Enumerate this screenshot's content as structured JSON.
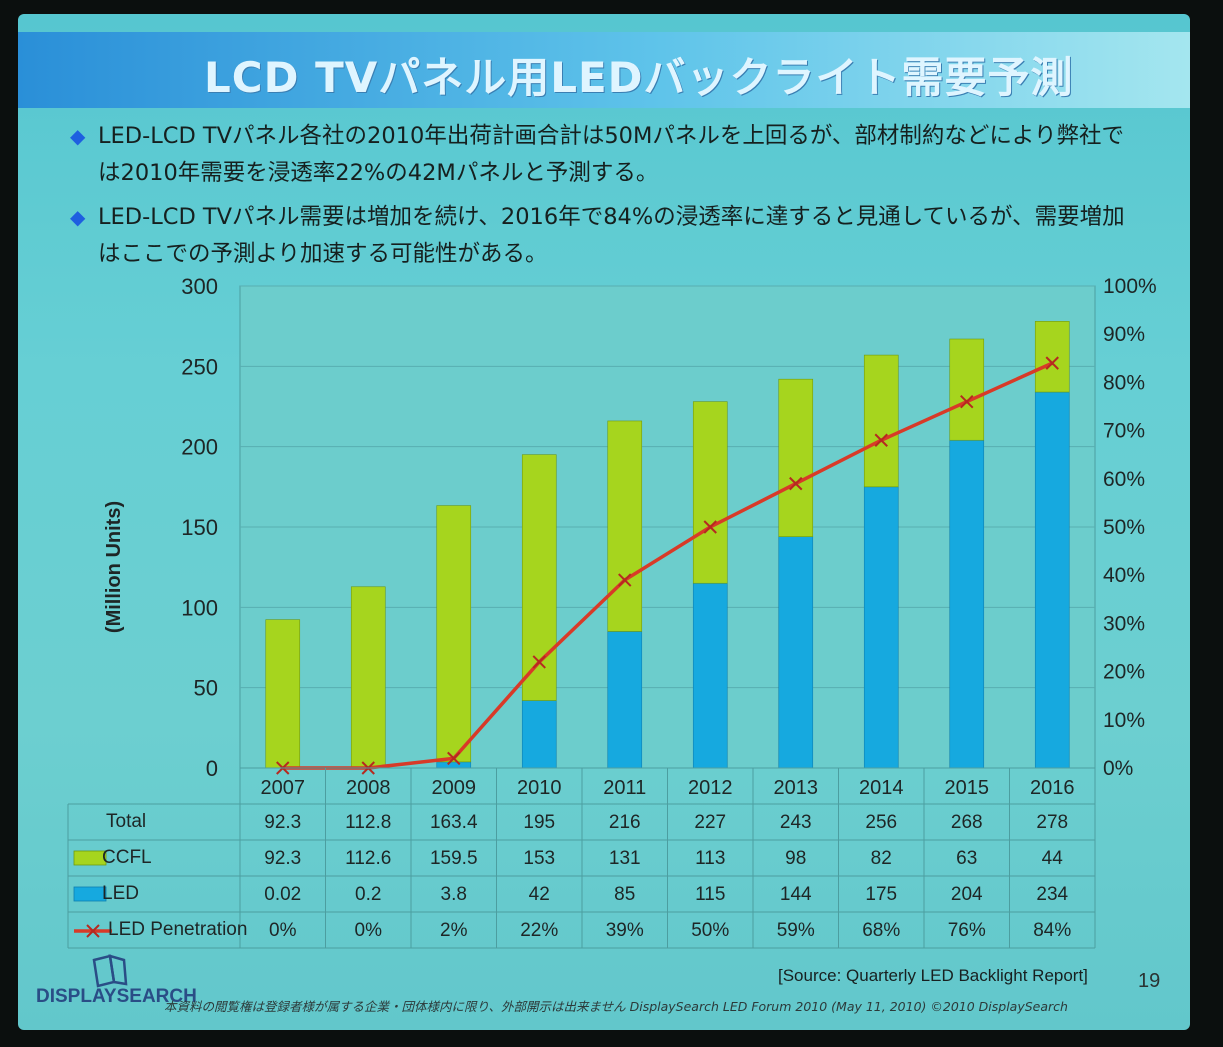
{
  "slide": {
    "title": "LCD TVパネル用LEDバックライト需要予測",
    "bullets": [
      "LED-LCD TVパネル各社の2010年出荷計画合計は50Mパネルを上回るが、部材制約などにより弊社では2010年需要を浸透率22%の42Mパネルと予測する。",
      "LED-LCD TVパネル需要は増加を続け、2016年で84%の浸透率に達すると見通しているが、需要増加はここでの予測より加速する可能性がある。"
    ],
    "source": "[Source: Quarterly LED Backlight Report]",
    "page_number": "19",
    "logo_text": "DISPLAYSEARCH",
    "footer": "本資料の閲覧権は登録者様が属する企業・団体様内に限り、外部開示は出来ません DisplaySearch LED Forum 2010 (May 11, 2010) ©2010 DisplaySearch"
  },
  "chart_data": {
    "type": "bar",
    "stacked": true,
    "categories": [
      "2007",
      "2008",
      "2009",
      "2010",
      "2011",
      "2012",
      "2013",
      "2014",
      "2015",
      "2016"
    ],
    "ylabel": "(Million Units)",
    "ylim": [
      0,
      300
    ],
    "yticks": [
      0,
      50,
      100,
      150,
      200,
      250,
      300
    ],
    "y2lim": [
      0,
      100
    ],
    "y2ticks": [
      "0%",
      "10%",
      "20%",
      "30%",
      "40%",
      "50%",
      "60%",
      "70%",
      "80%",
      "90%",
      "100%"
    ],
    "grid": true,
    "series": [
      {
        "name": "LED",
        "kind": "bar",
        "color": "#16a9df",
        "values": [
          0.02,
          0.2,
          3.8,
          42,
          85,
          115,
          144,
          175,
          204,
          234
        ]
      },
      {
        "name": "CCFL",
        "kind": "bar",
        "color": "#a6d51e",
        "values": [
          92.3,
          112.6,
          159.5,
          153,
          131,
          113,
          98,
          82,
          63,
          44
        ]
      },
      {
        "name": "LED Penetration",
        "kind": "line",
        "axis": "right",
        "color": "#d83a28",
        "values": [
          0,
          0,
          2,
          22,
          39,
          50,
          59,
          68,
          76,
          84
        ]
      }
    ],
    "table": {
      "rows": [
        {
          "label": "Total",
          "values": [
            "92.3",
            "112.8",
            "163.4",
            "195",
            "216",
            "227",
            "243",
            "256",
            "268",
            "278"
          ]
        },
        {
          "label": "CCFL",
          "values": [
            "92.3",
            "112.6",
            "159.5",
            "153",
            "131",
            "113",
            "98",
            "82",
            "63",
            "44"
          ]
        },
        {
          "label": "LED",
          "values": [
            "0.02",
            "0.2",
            "3.8",
            "42",
            "85",
            "115",
            "144",
            "175",
            "204",
            "234"
          ]
        },
        {
          "label": "LED Penetration",
          "values": [
            "0%",
            "0%",
            "2%",
            "22%",
            "39%",
            "50%",
            "59%",
            "68%",
            "76%",
            "84%"
          ]
        }
      ]
    }
  }
}
